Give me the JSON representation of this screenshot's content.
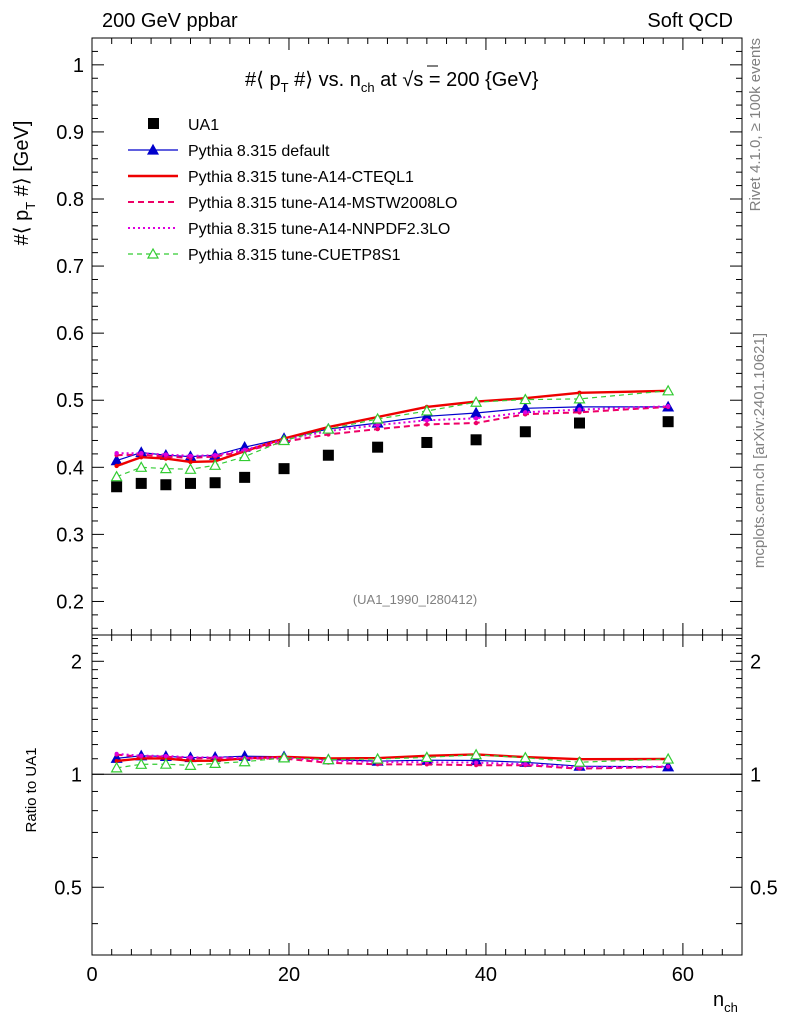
{
  "header": {
    "left_label": "200 GeV ppbar",
    "right_label": "Soft QCD"
  },
  "side_labels": {
    "rivet": "Rivet 4.1.0, ≥ 100k events",
    "mcplots": "mcplots.cern.ch [arXiv:2401.10621]"
  },
  "chart_data": [
    {
      "type": "scatter",
      "title": "#⟨ p_T #⟩ vs. n_ch at √s = 200 {GeV}",
      "ylabel": "#⟨ p_T #⟩ [GeV]",
      "xlabel": "n_ch",
      "xlim": [
        0,
        66
      ],
      "ylim": [
        0.15,
        1.04
      ],
      "yticks": [
        0.2,
        0.3,
        0.4,
        0.5,
        0.6,
        0.7,
        0.8,
        0.9,
        1
      ],
      "ytick_labels": [
        "0.2",
        "0.3",
        "0.4",
        "0.5",
        "0.6",
        "0.7",
        "0.8",
        "0.9",
        "1"
      ],
      "xticks": [
        0,
        20,
        40,
        60
      ],
      "xtick_labels": [
        "0",
        "20",
        "40",
        "60"
      ],
      "watermark": "(UA1_1990_I280412)",
      "x": [
        2.5,
        5,
        7.5,
        10,
        12.5,
        15.5,
        19.5,
        24,
        29,
        34,
        39,
        44,
        49.5,
        58.5
      ],
      "series": [
        {
          "name": "UA1",
          "style": "data",
          "color": "#000000",
          "values": [
            0.371,
            0.376,
            0.374,
            0.376,
            0.377,
            0.385,
            0.398,
            0.418,
            0.43,
            0.437,
            0.441,
            0.453,
            0.466,
            0.468
          ]
        },
        {
          "name": "Pythia 8.315 default",
          "style": "solid-triangle",
          "color": "#0000cc",
          "values": [
            0.41,
            0.422,
            0.418,
            0.416,
            0.418,
            0.43,
            0.443,
            0.457,
            0.466,
            0.476,
            0.481,
            0.488,
            0.49,
            0.49
          ]
        },
        {
          "name": "Pythia 8.315 tune-A14-CTEQL1",
          "style": "solid-thick",
          "color": "#ee0000",
          "values": [
            0.402,
            0.415,
            0.413,
            0.408,
            0.409,
            0.424,
            0.443,
            0.46,
            0.475,
            0.49,
            0.498,
            0.503,
            0.511,
            0.514
          ]
        },
        {
          "name": "Pythia 8.315 tune-A14-MSTW2008LO",
          "style": "dashed",
          "color": "#ee0066",
          "values": [
            0.418,
            0.419,
            0.416,
            0.414,
            0.416,
            0.424,
            0.438,
            0.449,
            0.457,
            0.464,
            0.466,
            0.479,
            0.482,
            0.49
          ]
        },
        {
          "name": "Pythia 8.315 tune-A14-NNPDF2.3LO",
          "style": "dotted",
          "color": "#dd00dd",
          "values": [
            0.421,
            0.421,
            0.419,
            0.417,
            0.418,
            0.426,
            0.441,
            0.454,
            0.463,
            0.47,
            0.473,
            0.482,
            0.486,
            0.491
          ]
        },
        {
          "name": "Pythia 8.315 tune-CUETP8S1",
          "style": "dashed-triangle",
          "color": "#33cc33",
          "values": [
            0.386,
            0.4,
            0.398,
            0.397,
            0.403,
            0.416,
            0.44,
            0.457,
            0.472,
            0.484,
            0.497,
            0.501,
            0.502,
            0.514
          ]
        }
      ]
    },
    {
      "type": "line",
      "ylabel": "Ratio to UA1",
      "xlabel": "n_ch",
      "xlim": [
        0,
        66
      ],
      "ylim": [
        0.33,
        2.35
      ],
      "yscale": "log",
      "yticks": [
        0.5,
        1,
        2
      ],
      "ytick_labels": [
        "0.5",
        "1",
        "2"
      ],
      "xticks": [
        0,
        20,
        40,
        60
      ],
      "xtick_labels": [
        "0",
        "20",
        "40",
        "60"
      ],
      "x": [
        2.5,
        5,
        7.5,
        10,
        12.5,
        15.5,
        19.5,
        24,
        29,
        34,
        39,
        44,
        49.5,
        58.5
      ],
      "series": [
        {
          "name": "Pythia 8.315 default",
          "color": "#0000cc",
          "values": [
            1.103,
            1.12,
            1.116,
            1.108,
            1.11,
            1.117,
            1.114,
            1.094,
            1.084,
            1.09,
            1.088,
            1.076,
            1.051,
            1.047
          ]
        },
        {
          "name": "Pythia 8.315 tune-A14-CTEQL1",
          "color": "#ee0000",
          "values": [
            1.085,
            1.102,
            1.102,
            1.086,
            1.087,
            1.102,
            1.113,
            1.102,
            1.104,
            1.12,
            1.13,
            1.111,
            1.097,
            1.098
          ]
        },
        {
          "name": "Pythia 8.315 tune-A14-MSTW2008LO",
          "color": "#ee0066",
          "values": [
            1.128,
            1.113,
            1.114,
            1.102,
            1.104,
            1.102,
            1.101,
            1.073,
            1.063,
            1.062,
            1.057,
            1.057,
            1.035,
            1.047
          ]
        },
        {
          "name": "Pythia 8.315 tune-A14-NNPDF2.3LO",
          "color": "#dd00dd",
          "values": [
            1.134,
            1.121,
            1.119,
            1.109,
            1.109,
            1.106,
            1.108,
            1.087,
            1.078,
            1.077,
            1.074,
            1.064,
            1.043,
            1.049
          ]
        },
        {
          "name": "Pythia 8.315 tune-CUETP8S1",
          "color": "#33cc33",
          "values": [
            1.04,
            1.063,
            1.064,
            1.056,
            1.069,
            1.08,
            1.106,
            1.094,
            1.098,
            1.109,
            1.127,
            1.107,
            1.077,
            1.098
          ]
        }
      ]
    }
  ]
}
